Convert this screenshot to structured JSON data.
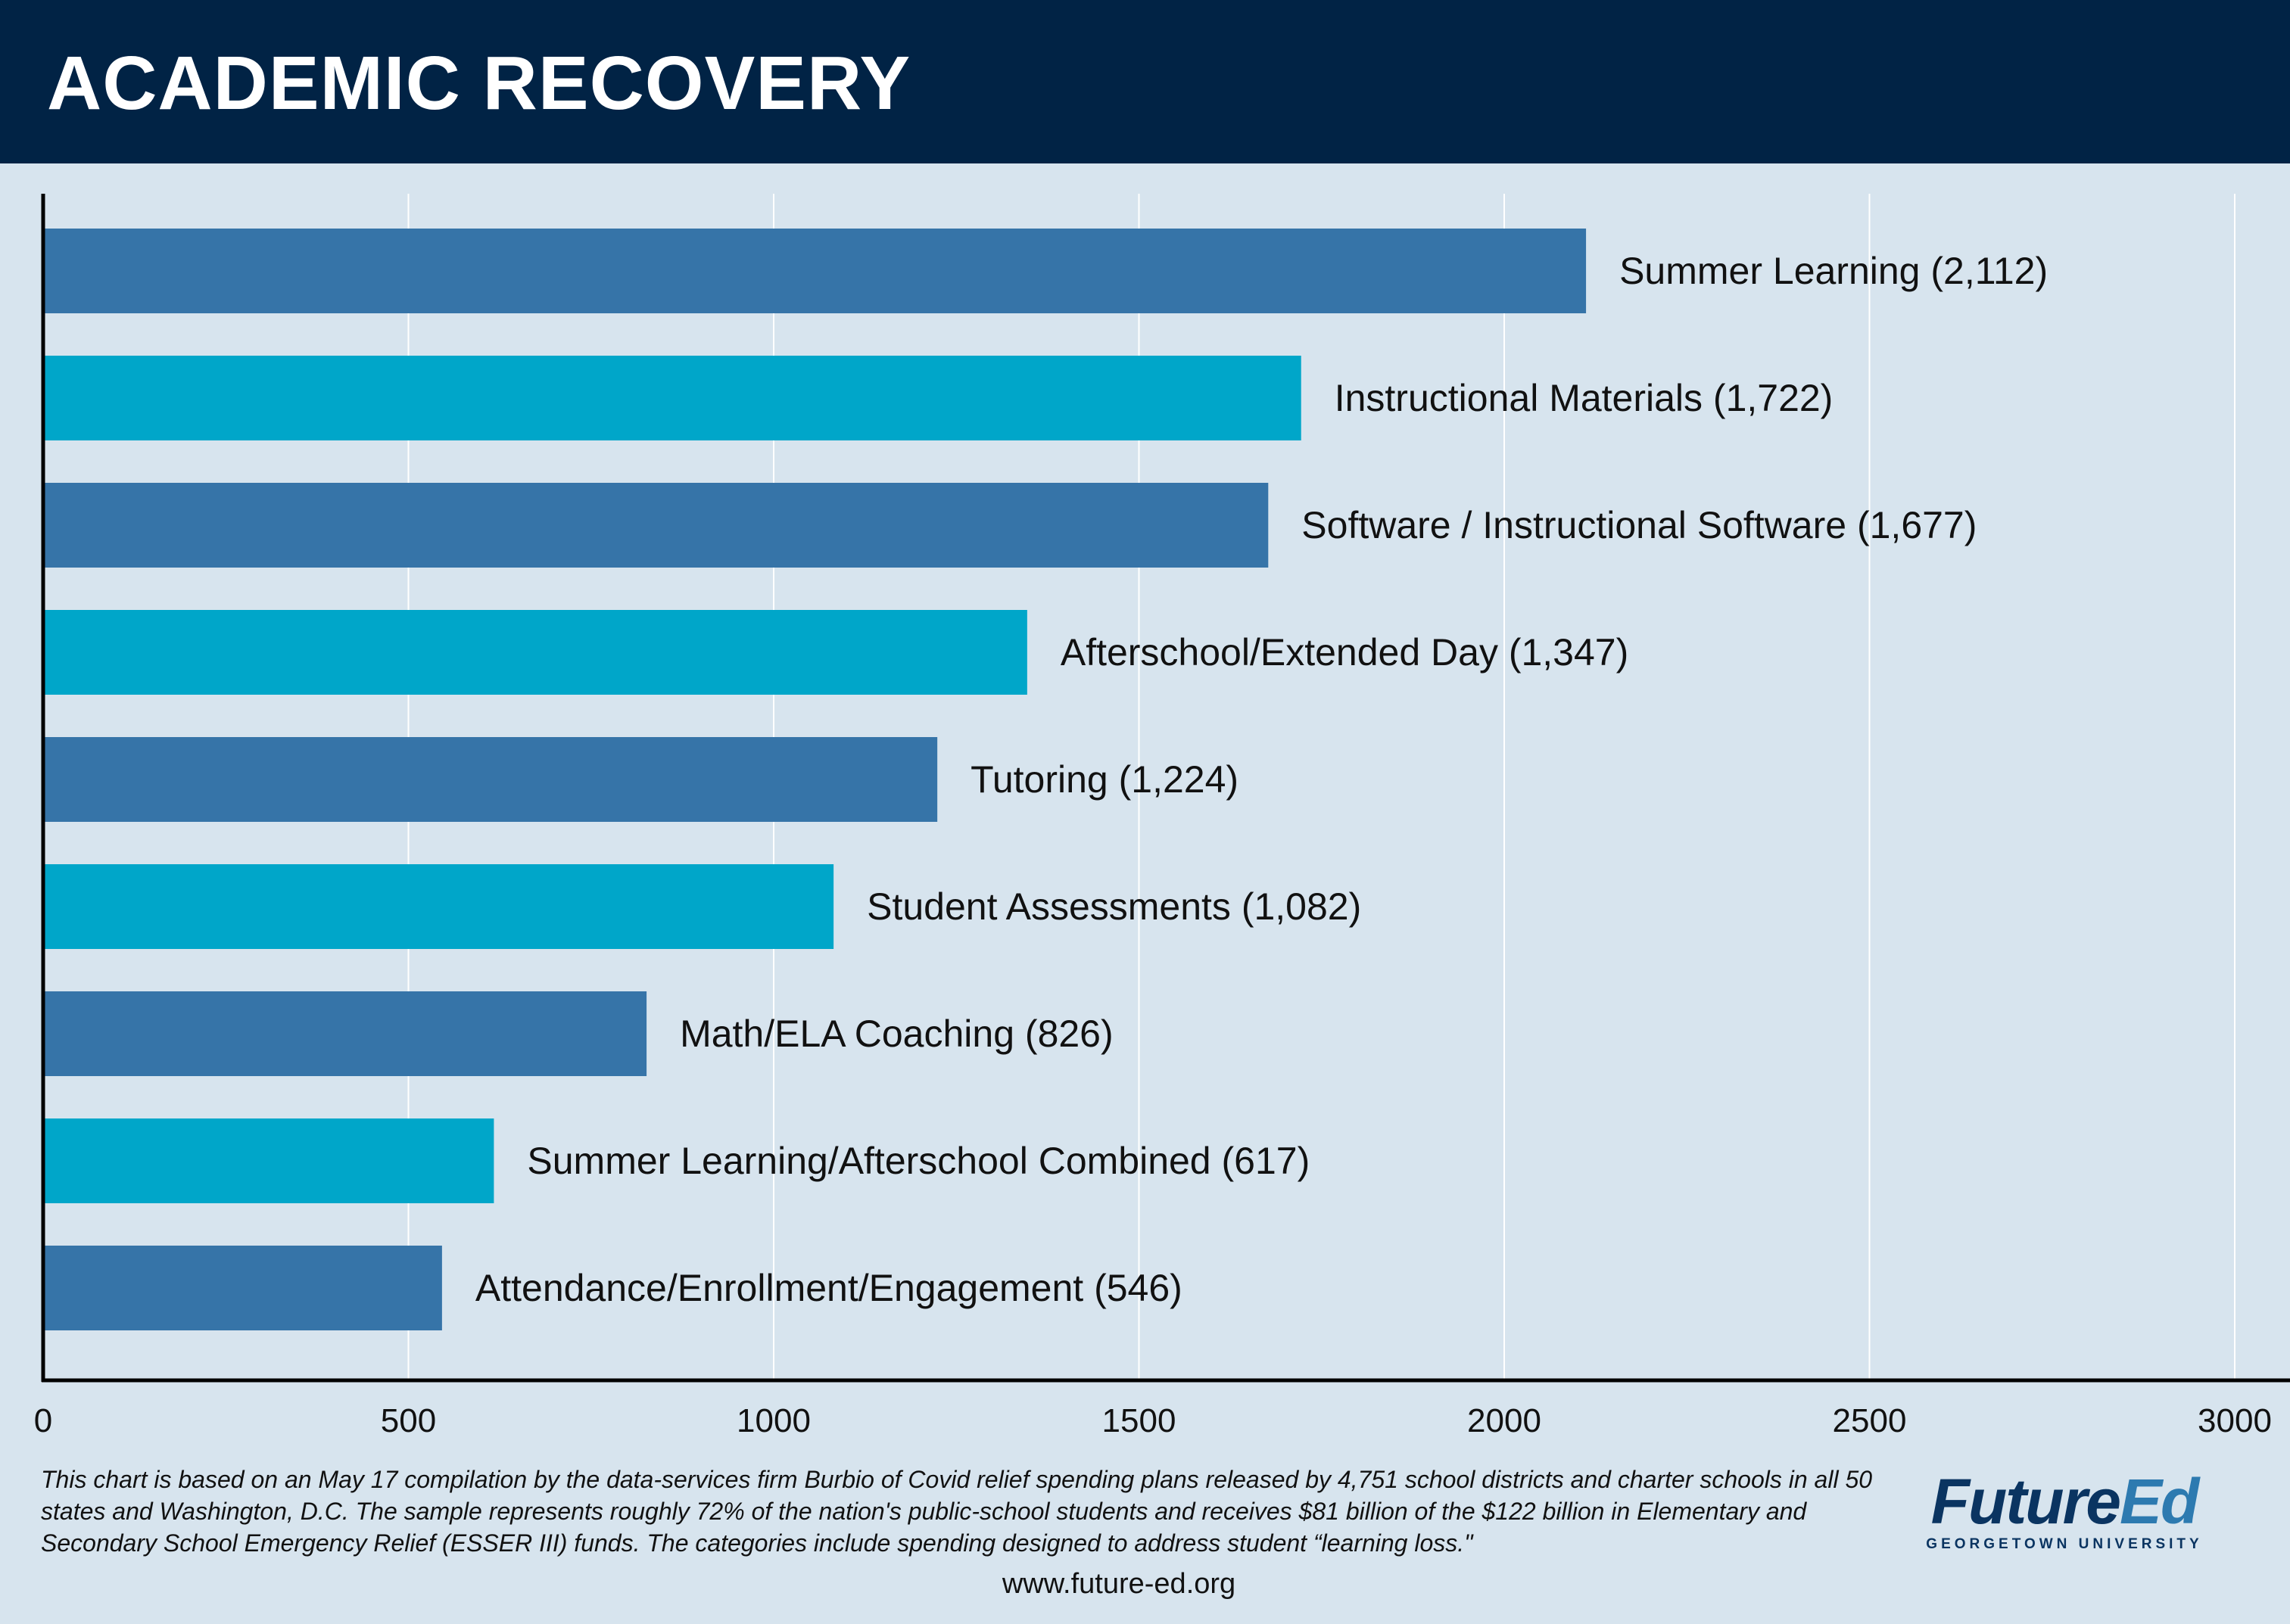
{
  "header": {
    "title": "ACADEMIC RECOVERY"
  },
  "chart_data": {
    "type": "bar",
    "orientation": "horizontal",
    "categories": [
      "Summer Learning (2,112)",
      "Instructional Materials (1,722)",
      "Software / Instructional Software (1,677)",
      "Afterschool/Extended Day (1,347)",
      "Tutoring (1,224)",
      "Student Assessments (1,082)",
      "Math/ELA Coaching (826)",
      "Summer Learning/Afterschool Combined (617)",
      "Attendance/Enrollment/Engagement (546)"
    ],
    "values": [
      2112,
      1722,
      1677,
      1347,
      1224,
      1082,
      826,
      617,
      546
    ],
    "xlim": [
      0,
      3000
    ],
    "xticks": [
      0,
      500,
      1000,
      1500,
      2000,
      2500,
      3000
    ],
    "tick_labels": [
      "0",
      "500",
      "1000",
      "1500",
      "2000",
      "2500",
      "3000"
    ],
    "grid": "vertical",
    "colors": [
      "#3674a8",
      "#00a6c9"
    ],
    "gridline_color": "#ffffff",
    "axis_color": "#000000"
  },
  "footer": {
    "note": "This chart is based on an May 17 compilation by the data-services firm Burbio of Covid relief spending plans released by 4,751 school districts and charter schools in all 50 states and Washington, D.C. The sample represents roughly 72% of the nation's public-school students and receives $81 billion of the $122 billion in Elementary and Secondary School Emergency Relief (ESSER III) funds. The categories include spending designed to address student “learning loss.\"",
    "url": "www.future-ed.org"
  },
  "logo": {
    "word_part1": "Future",
    "word_part2": "Ed",
    "subtitle": "GEORGETOWN UNIVERSITY"
  }
}
